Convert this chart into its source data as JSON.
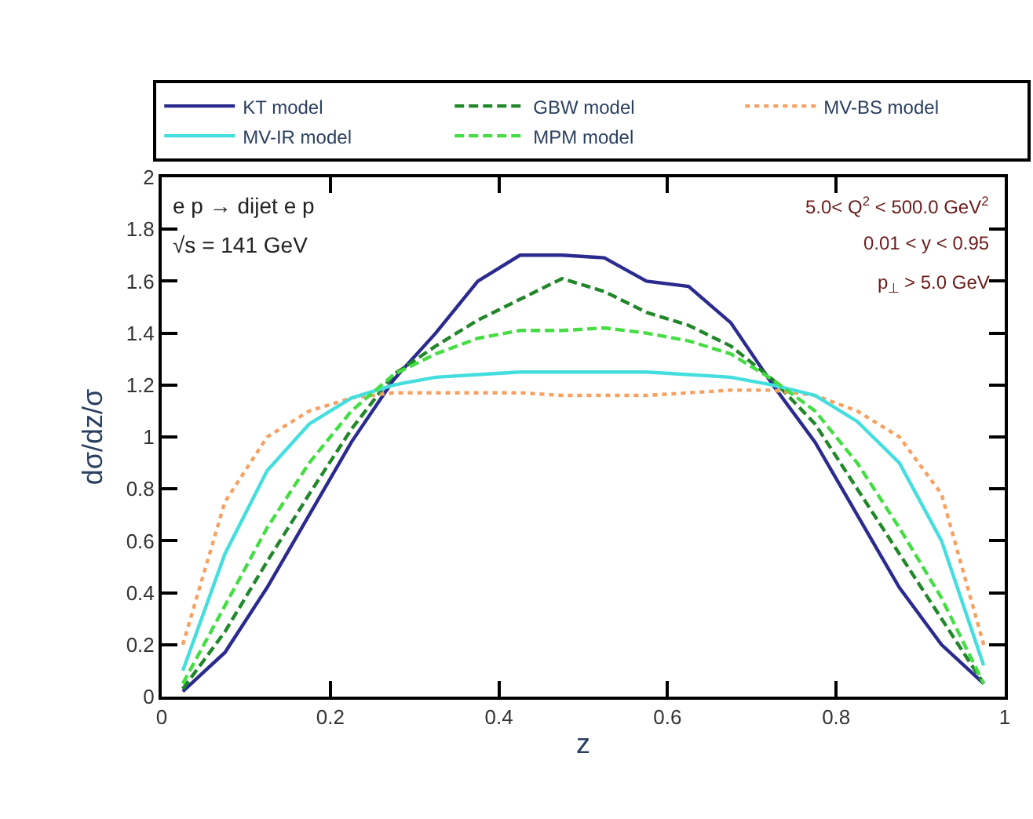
{
  "chart_data": {
    "type": "line",
    "xlabel": "z",
    "ylabel": "dσ/dz/σ",
    "x": [
      0.025,
      0.075,
      0.125,
      0.175,
      0.225,
      0.275,
      0.325,
      0.375,
      0.425,
      0.475,
      0.525,
      0.575,
      0.625,
      0.675,
      0.725,
      0.775,
      0.825,
      0.875,
      0.925,
      0.975
    ],
    "series": [
      {
        "name": "KT model",
        "color": "#2b2b8f",
        "line_style": "solid",
        "values": [
          0.02,
          0.17,
          0.42,
          0.7,
          0.98,
          1.22,
          1.4,
          1.6,
          1.7,
          1.7,
          1.69,
          1.6,
          1.58,
          1.44,
          1.2,
          0.98,
          0.7,
          0.42,
          0.2,
          0.05
        ]
      },
      {
        "name": "GBW model",
        "color": "#22862a",
        "line_style": "dashed",
        "values": [
          0.03,
          0.25,
          0.52,
          0.78,
          1.03,
          1.24,
          1.35,
          1.45,
          1.53,
          1.61,
          1.56,
          1.48,
          1.43,
          1.35,
          1.22,
          1.05,
          0.8,
          0.55,
          0.3,
          0.05
        ]
      },
      {
        "name": "MV-BS model",
        "color": "#f7a060",
        "line_style": "dotted",
        "values": [
          0.2,
          0.75,
          1.0,
          1.1,
          1.15,
          1.17,
          1.17,
          1.17,
          1.17,
          1.16,
          1.16,
          1.16,
          1.17,
          1.18,
          1.18,
          1.16,
          1.1,
          1.0,
          0.78,
          0.2
        ]
      },
      {
        "name": "MV-IR model",
        "color": "#45dede",
        "line_style": "solid",
        "values": [
          0.1,
          0.55,
          0.87,
          1.05,
          1.15,
          1.2,
          1.23,
          1.24,
          1.25,
          1.25,
          1.25,
          1.25,
          1.24,
          1.23,
          1.2,
          1.16,
          1.06,
          0.9,
          0.6,
          0.12
        ]
      },
      {
        "name": "MPM model",
        "color": "#44dd44",
        "line_style": "dashed",
        "values": [
          0.05,
          0.35,
          0.65,
          0.9,
          1.1,
          1.24,
          1.32,
          1.38,
          1.41,
          1.41,
          1.42,
          1.4,
          1.37,
          1.32,
          1.22,
          1.1,
          0.9,
          0.65,
          0.38,
          0.05
        ]
      }
    ],
    "xlim": [
      0,
      1
    ],
    "xticks": [
      0,
      0.2,
      0.4,
      0.6,
      0.8,
      1
    ],
    "ylim": [
      0,
      2
    ],
    "yticks": [
      0,
      0.2,
      0.4,
      0.6,
      0.8,
      1,
      1.2,
      1.4,
      1.6,
      1.8,
      2
    ],
    "legend": "top",
    "marker": "none",
    "annotations": [
      "e p → dijet e p",
      "√s = 141 GeV",
      "5.0< Q$^{2}$ < 500.0 GeV$^{2}$",
      "0.01 < y < 0.95",
      "p$_{⊥}$ > 5.0 GeV"
    ]
  }
}
